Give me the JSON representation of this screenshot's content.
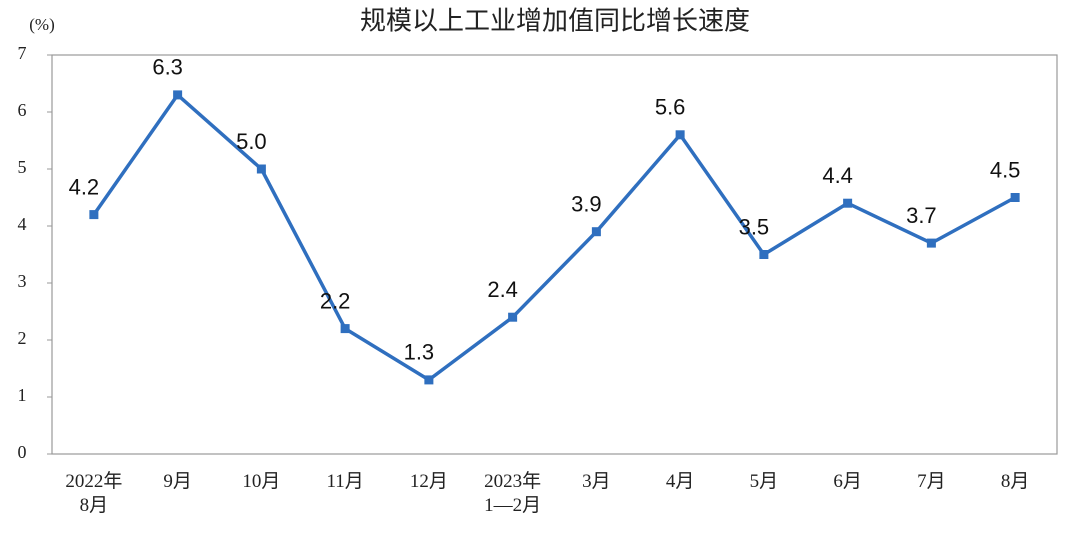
{
  "chart_data": {
    "type": "line",
    "title": "规模以上工业增加值同比增长速度",
    "y_label": "(%)",
    "categories": [
      "2022年\n8月",
      "9月",
      "10月",
      "11月",
      "12月",
      "2023年\n1—2月",
      "3月",
      "4月",
      "5月",
      "6月",
      "7月",
      "8月"
    ],
    "values": [
      4.2,
      6.3,
      5.0,
      2.2,
      1.3,
      2.4,
      3.9,
      5.6,
      3.5,
      4.4,
      3.7,
      4.5
    ],
    "value_labels": [
      "4.2",
      "6.3",
      "5.0",
      "2.2",
      "1.3",
      "2.4",
      "3.9",
      "5.6",
      "3.5",
      "4.4",
      "3.7",
      "4.5"
    ],
    "color": "#2f6fbf",
    "ylim": [
      0,
      7
    ],
    "yticks": [
      0,
      1,
      2,
      3,
      4,
      5,
      6,
      7
    ],
    "grid": false
  }
}
